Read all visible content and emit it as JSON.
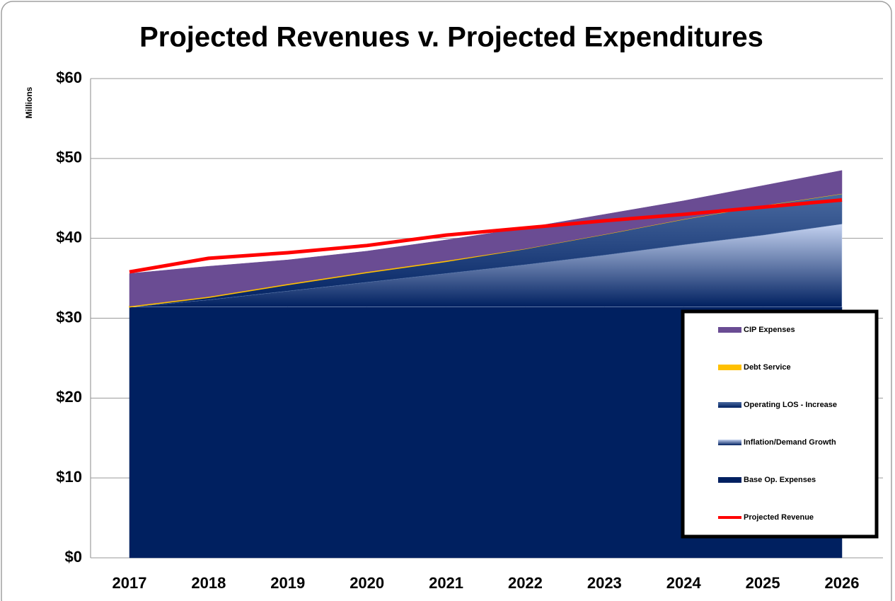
{
  "chart_data": {
    "type": "area",
    "title": "Projected Revenues v. Projected Expenditures",
    "y_label": "Millions",
    "categories": [
      "2017",
      "2018",
      "2019",
      "2020",
      "2021",
      "2022",
      "2023",
      "2024",
      "2025",
      "2026"
    ],
    "series": [
      {
        "name": "CIP Expenses",
        "type": "area",
        "color": "#6a4c93",
        "values": [
          4.1,
          3.8,
          3.0,
          2.6,
          2.6,
          2.6,
          2.5,
          2.3,
          2.5,
          2.9
        ]
      },
      {
        "name": "Debt Service",
        "type": "area",
        "color": "#ffc000",
        "values": [
          0.1,
          0.1,
          0.1,
          0.1,
          0.1,
          0,
          0,
          0,
          0,
          0
        ]
      },
      {
        "name": "Operating LOS - Increase",
        "type": "area",
        "color": "#4a6aa0",
        "values": [
          0,
          0.3,
          0.8,
          1.2,
          1.5,
          2.0,
          2.6,
          3.2,
          3.7,
          3.8
        ]
      },
      {
        "name": "Inflation/Demand Growth",
        "type": "area",
        "color": "#c4d2f0",
        "values": [
          0,
          0.9,
          2.0,
          3.1,
          4.2,
          5.3,
          6.5,
          7.8,
          9.0,
          10.4
        ]
      },
      {
        "name": "Base Op. Expenses",
        "type": "area",
        "color": "#002060",
        "values": [
          31.4,
          31.4,
          31.4,
          31.4,
          31.4,
          31.4,
          31.4,
          31.4,
          31.4,
          31.4
        ]
      },
      {
        "name": "Projected Revenue",
        "type": "line",
        "color": "#ff0000",
        "values": [
          35.8,
          37.5,
          38.2,
          39.1,
          40.4,
          41.3,
          42.2,
          43.0,
          43.9,
          44.8
        ]
      }
    ],
    "ylim": [
      0,
      60
    ],
    "yticks": [
      {
        "value": 0,
        "label": "$0"
      },
      {
        "value": 10,
        "label": "$10"
      },
      {
        "value": 20,
        "label": "$20"
      },
      {
        "value": 30,
        "label": "$30"
      },
      {
        "value": 40,
        "label": "$40"
      },
      {
        "value": 50,
        "label": "$50"
      },
      {
        "value": 60,
        "label": "$60"
      }
    ],
    "grid": true,
    "legend": "right"
  }
}
